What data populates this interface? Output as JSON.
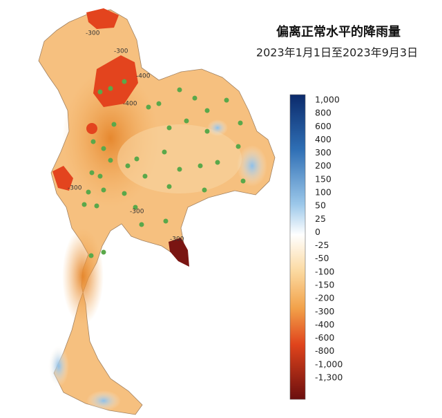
{
  "title": "偏离正常水平的降雨量",
  "subtitle": "2023年1月1日至2023年9月3日",
  "colorbar": {
    "labels": [
      "1,000",
      "800",
      "600",
      "400",
      "300",
      "200",
      "150",
      "100",
      "50",
      "25",
      "0",
      "-25",
      "-50",
      "-100",
      "-150",
      "-200",
      "-300",
      "-400",
      "-600",
      "-800",
      "-1,000",
      "-1,300"
    ]
  },
  "contour_labels": [
    "-300",
    "-300",
    "-400",
    "-400",
    "-300",
    "-300",
    "-300"
  ]
}
